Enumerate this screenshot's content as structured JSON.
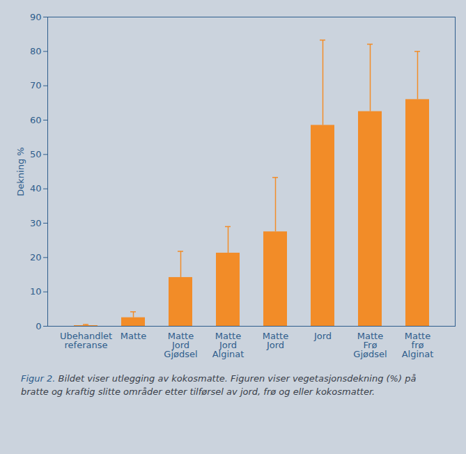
{
  "chart_data": {
    "type": "bar",
    "y_label": "Dekning %",
    "categories": [
      "Ubehandlet referanse",
      "Matte",
      "Matte Jord Gjødsel",
      "Matte Jord Alginat",
      "Matte Jord",
      "Jord",
      "Matte Frø Gjødsel",
      "Matte frø Alginat"
    ],
    "values": [
      0.2,
      2.5,
      14.2,
      21.3,
      27.5,
      58.5,
      62.5,
      66
    ],
    "errors": [
      0.3,
      1.7,
      7.6,
      7.7,
      15.8,
      24.8,
      19.6,
      14
    ],
    "color": "#f28c28",
    "ylim": [
      0,
      90
    ],
    "yticks": [
      0,
      10,
      20,
      30,
      40,
      50,
      60,
      70,
      80,
      90
    ],
    "grid": false,
    "caption_label": "Figur 2.",
    "caption": "Bildet viser utlegging av kokosmatte. Figuren viser vegetasjonsdekning (%) på bratte og kraftig slitte områder etter tilførsel av jord, frø og eller kokosmatter."
  }
}
